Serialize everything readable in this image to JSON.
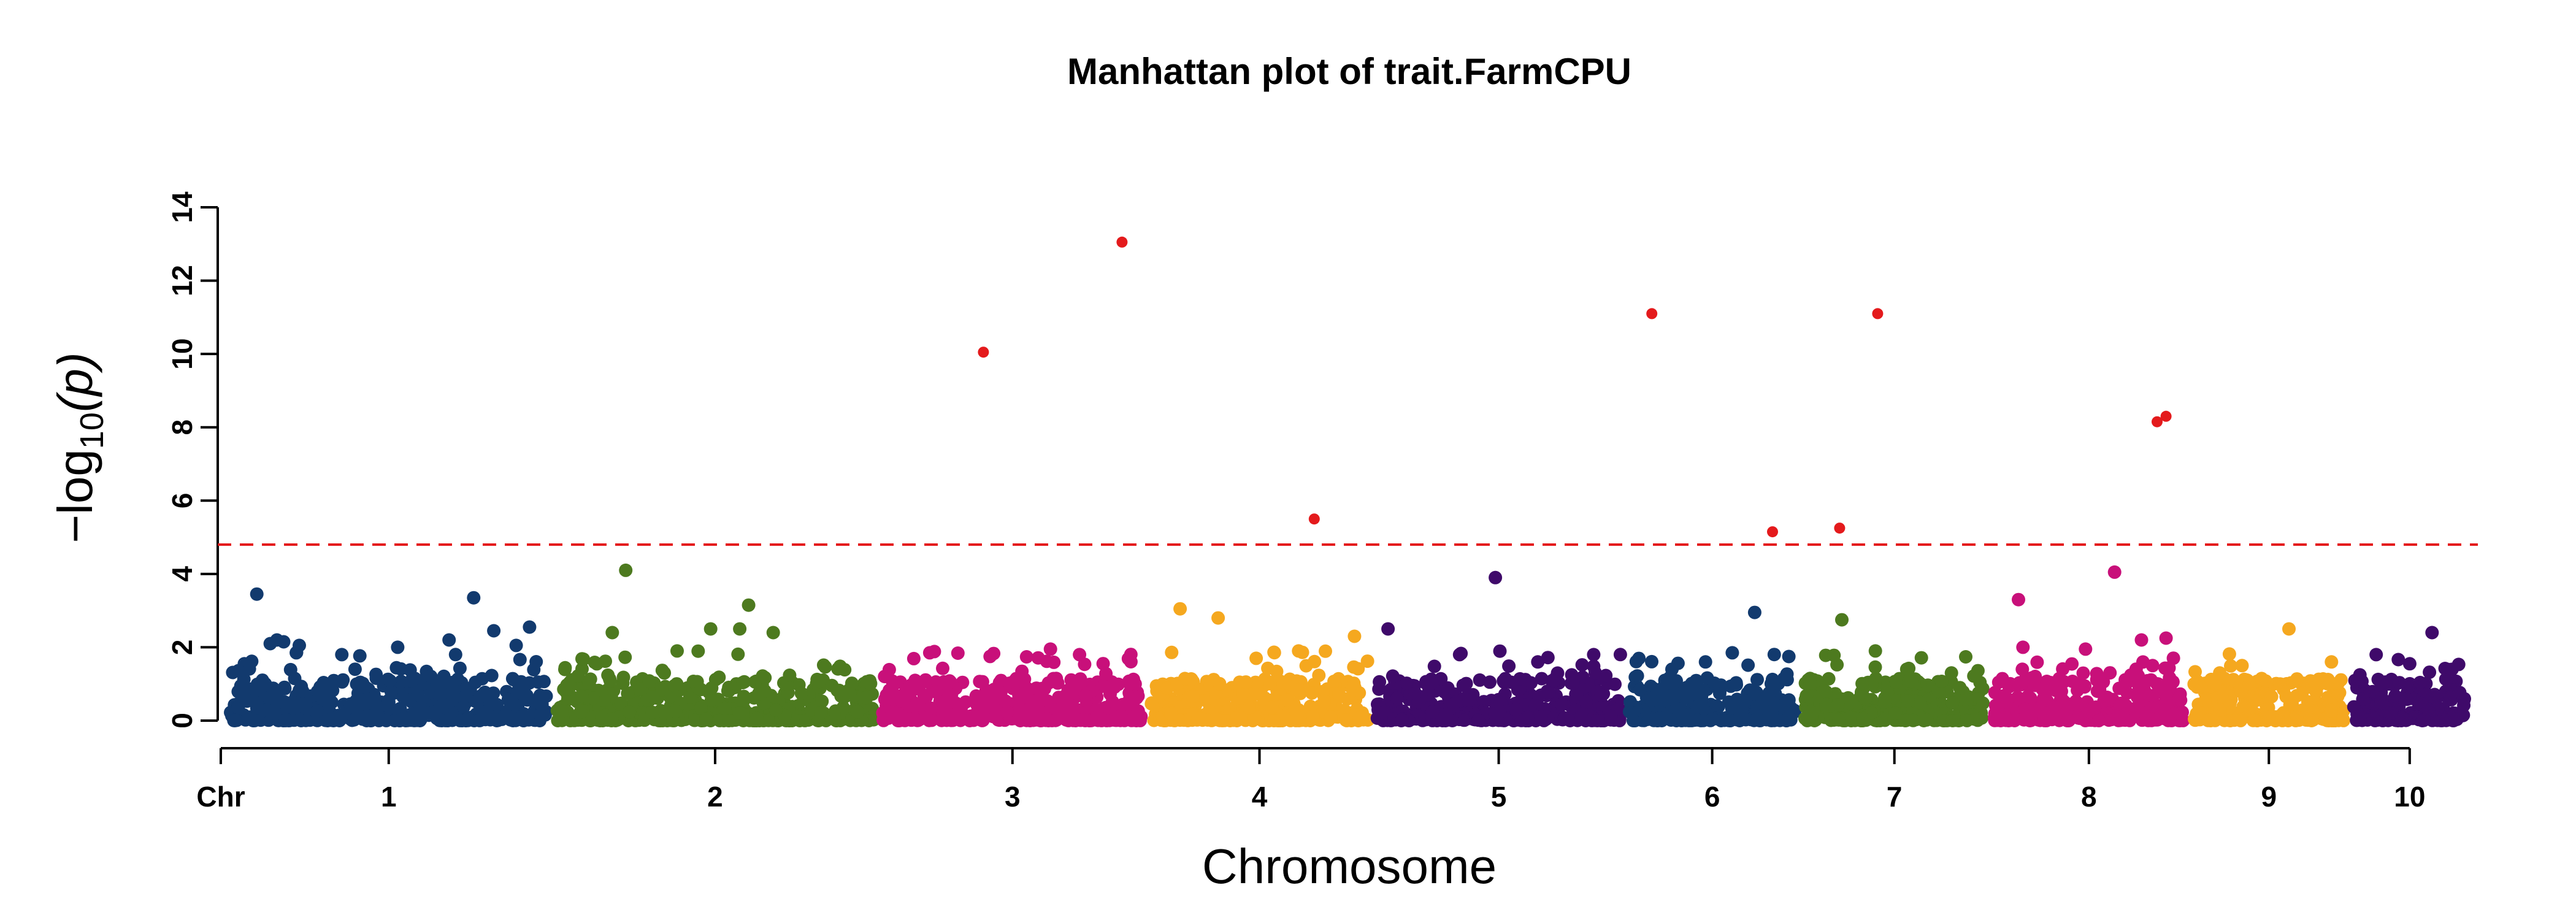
{
  "chart_data": {
    "type": "scatter",
    "title": "Manhattan plot of trait.FarmCPU",
    "xlabel": "Chromosome",
    "ylabel_prefix": "−log",
    "ylabel_sub": "10",
    "ylabel_suffix": "(p)",
    "ylim": [
      0,
      14
    ],
    "yticks": [
      "0",
      "2",
      "4",
      "6",
      "8",
      "10",
      "12",
      "14"
    ],
    "x_first_label": "Chr",
    "threshold": 4.8,
    "significant_color": "#e41a1c",
    "chromosomes": [
      {
        "label": "1",
        "start": 0.0,
        "end": 0.142,
        "color": "#123a6e",
        "top_points": [
          [
            0.012,
            3.45
          ],
          [
            0.018,
            2.1
          ],
          [
            0.021,
            2.2
          ],
          [
            0.024,
            2.15
          ],
          [
            0.031,
            2.05
          ],
          [
            0.075,
            2.0
          ],
          [
            0.109,
            3.35
          ],
          [
            0.118,
            2.45
          ],
          [
            0.128,
            2.05
          ],
          [
            0.134,
            2.55
          ],
          [
            0.098,
            2.2
          ],
          [
            0.05,
            1.8
          ]
        ]
      },
      {
        "label": "2",
        "start": 0.146,
        "end": 0.288,
        "color": "#4d7a1f",
        "top_points": [
          [
            0.177,
            4.1
          ],
          [
            0.171,
            2.4
          ],
          [
            0.215,
            2.5
          ],
          [
            0.232,
            3.15
          ],
          [
            0.243,
            2.4
          ],
          [
            0.228,
            2.5
          ],
          [
            0.2,
            1.9
          ]
        ]
      },
      {
        "label": "3",
        "start": 0.292,
        "end": 0.408,
        "color": "#c8107a",
        "top_points": [
          [
            0.313,
            1.85
          ],
          [
            0.367,
            1.95
          ],
          [
            0.38,
            1.8
          ],
          [
            0.34,
            1.75
          ]
        ]
      },
      {
        "label": "4",
        "start": 0.412,
        "end": 0.509,
        "color": "#f5a81f",
        "top_points": [
          [
            0.425,
            3.05
          ],
          [
            0.442,
            2.8
          ],
          [
            0.478,
            1.9
          ],
          [
            0.503,
            2.3
          ],
          [
            0.459,
            1.7
          ]
        ]
      },
      {
        "label": "5",
        "start": 0.513,
        "end": 0.622,
        "color": "#3f0a6a",
        "top_points": [
          [
            0.518,
            2.5
          ],
          [
            0.566,
            3.9
          ],
          [
            0.55,
            1.8
          ],
          [
            0.585,
            1.6
          ],
          [
            0.61,
            1.8
          ]
        ]
      },
      {
        "label": "6",
        "start": 0.626,
        "end": 0.7,
        "color": "#123a6e",
        "top_points": [
          [
            0.682,
            2.95
          ],
          [
            0.672,
            1.85
          ],
          [
            0.66,
            1.6
          ],
          [
            0.645,
            1.4
          ]
        ]
      },
      {
        "label": "7",
        "start": 0.704,
        "end": 0.785,
        "color": "#4d7a1f",
        "top_points": [
          [
            0.721,
            2.75
          ],
          [
            0.736,
            1.9
          ],
          [
            0.75,
            1.4
          ],
          [
            0.77,
            1.3
          ]
        ]
      },
      {
        "label": "8",
        "start": 0.789,
        "end": 0.874,
        "color": "#c8107a",
        "top_points": [
          [
            0.8,
            3.3
          ],
          [
            0.802,
            2.0
          ],
          [
            0.83,
            1.95
          ],
          [
            0.843,
            4.05
          ],
          [
            0.855,
            2.2
          ],
          [
            0.866,
            2.25
          ],
          [
            0.86,
            1.5
          ]
        ]
      },
      {
        "label": "9",
        "start": 0.878,
        "end": 0.946,
        "color": "#f5a81f",
        "top_points": [
          [
            0.921,
            2.5
          ],
          [
            0.9,
            1.5
          ],
          [
            0.94,
            1.6
          ],
          [
            0.89,
            1.3
          ]
        ]
      },
      {
        "label": "10",
        "start": 0.95,
        "end": 1.0,
        "color": "#3f0a6a",
        "top_points": [
          [
            0.985,
            2.4
          ],
          [
            0.96,
            1.8
          ],
          [
            0.975,
            1.55
          ]
        ]
      }
    ],
    "significant_points": [
      {
        "x": 0.337,
        "y": 10.05
      },
      {
        "x": 0.399,
        "y": 13.05
      },
      {
        "x": 0.485,
        "y": 5.5
      },
      {
        "x": 0.636,
        "y": 11.1
      },
      {
        "x": 0.69,
        "y": 5.15
      },
      {
        "x": 0.72,
        "y": 5.25
      },
      {
        "x": 0.737,
        "y": 11.1
      },
      {
        "x": 0.862,
        "y": 8.15
      },
      {
        "x": 0.866,
        "y": 8.3
      }
    ]
  }
}
